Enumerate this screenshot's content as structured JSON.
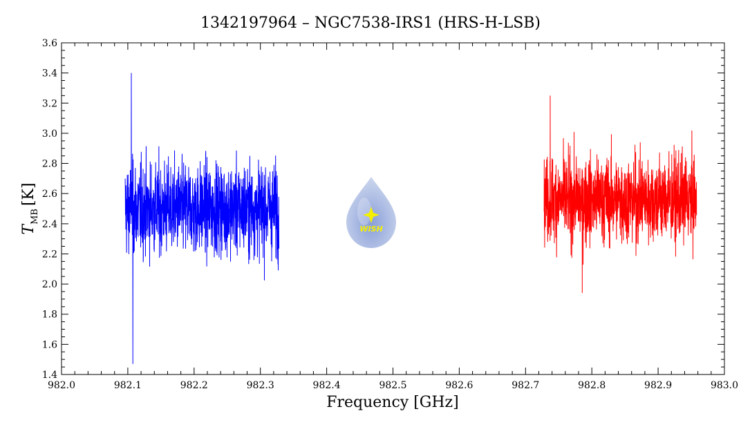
{
  "chart_data": {
    "type": "line",
    "title": "1342197964 – NGC7538-IRS1 (HRS-H-LSB)",
    "xlabel": "Frequency [GHz]",
    "ylabel_main": "T",
    "ylabel_sub": "MB",
    "ylabel_unit": "[K]",
    "xlim": [
      982.0,
      983.0
    ],
    "ylim": [
      1.4,
      3.6
    ],
    "xticks": [
      982.0,
      982.1,
      982.2,
      982.3,
      982.4,
      982.5,
      982.6,
      982.7,
      982.8,
      982.9,
      983.0
    ],
    "yticks": [
      1.4,
      1.6,
      1.8,
      2.0,
      2.2,
      2.4,
      2.6,
      2.8,
      3.0,
      3.2,
      3.4,
      3.6
    ],
    "xtick_labels": [
      "982.0",
      "982.1",
      "982.2",
      "982.3",
      "982.4",
      "982.5",
      "982.6",
      "982.7",
      "982.8",
      "982.9",
      "983.0"
    ],
    "ytick_labels": [
      "1.4",
      "1.6",
      "1.8",
      "2.0",
      "2.2",
      "2.4",
      "2.6",
      "2.8",
      "3.0",
      "3.2",
      "3.4",
      "3.6"
    ],
    "grid": false,
    "series": [
      {
        "color": "#0000ff",
        "x_range": [
          982.096,
          982.328
        ],
        "baseline": 2.5,
        "noise": 0.2,
        "min": 1.47,
        "max": 3.4
      },
      {
        "color": "#ff0000",
        "x_range": [
          982.728,
          982.958
        ],
        "baseline": 2.56,
        "noise": 0.19,
        "min": 1.94,
        "max": 3.25
      }
    ],
    "logo": {
      "text": "WISH",
      "colors": {
        "drop_top": "#dbe4f1",
        "drop_bottom": "#5d79c2",
        "star": "#f4f000"
      }
    }
  }
}
